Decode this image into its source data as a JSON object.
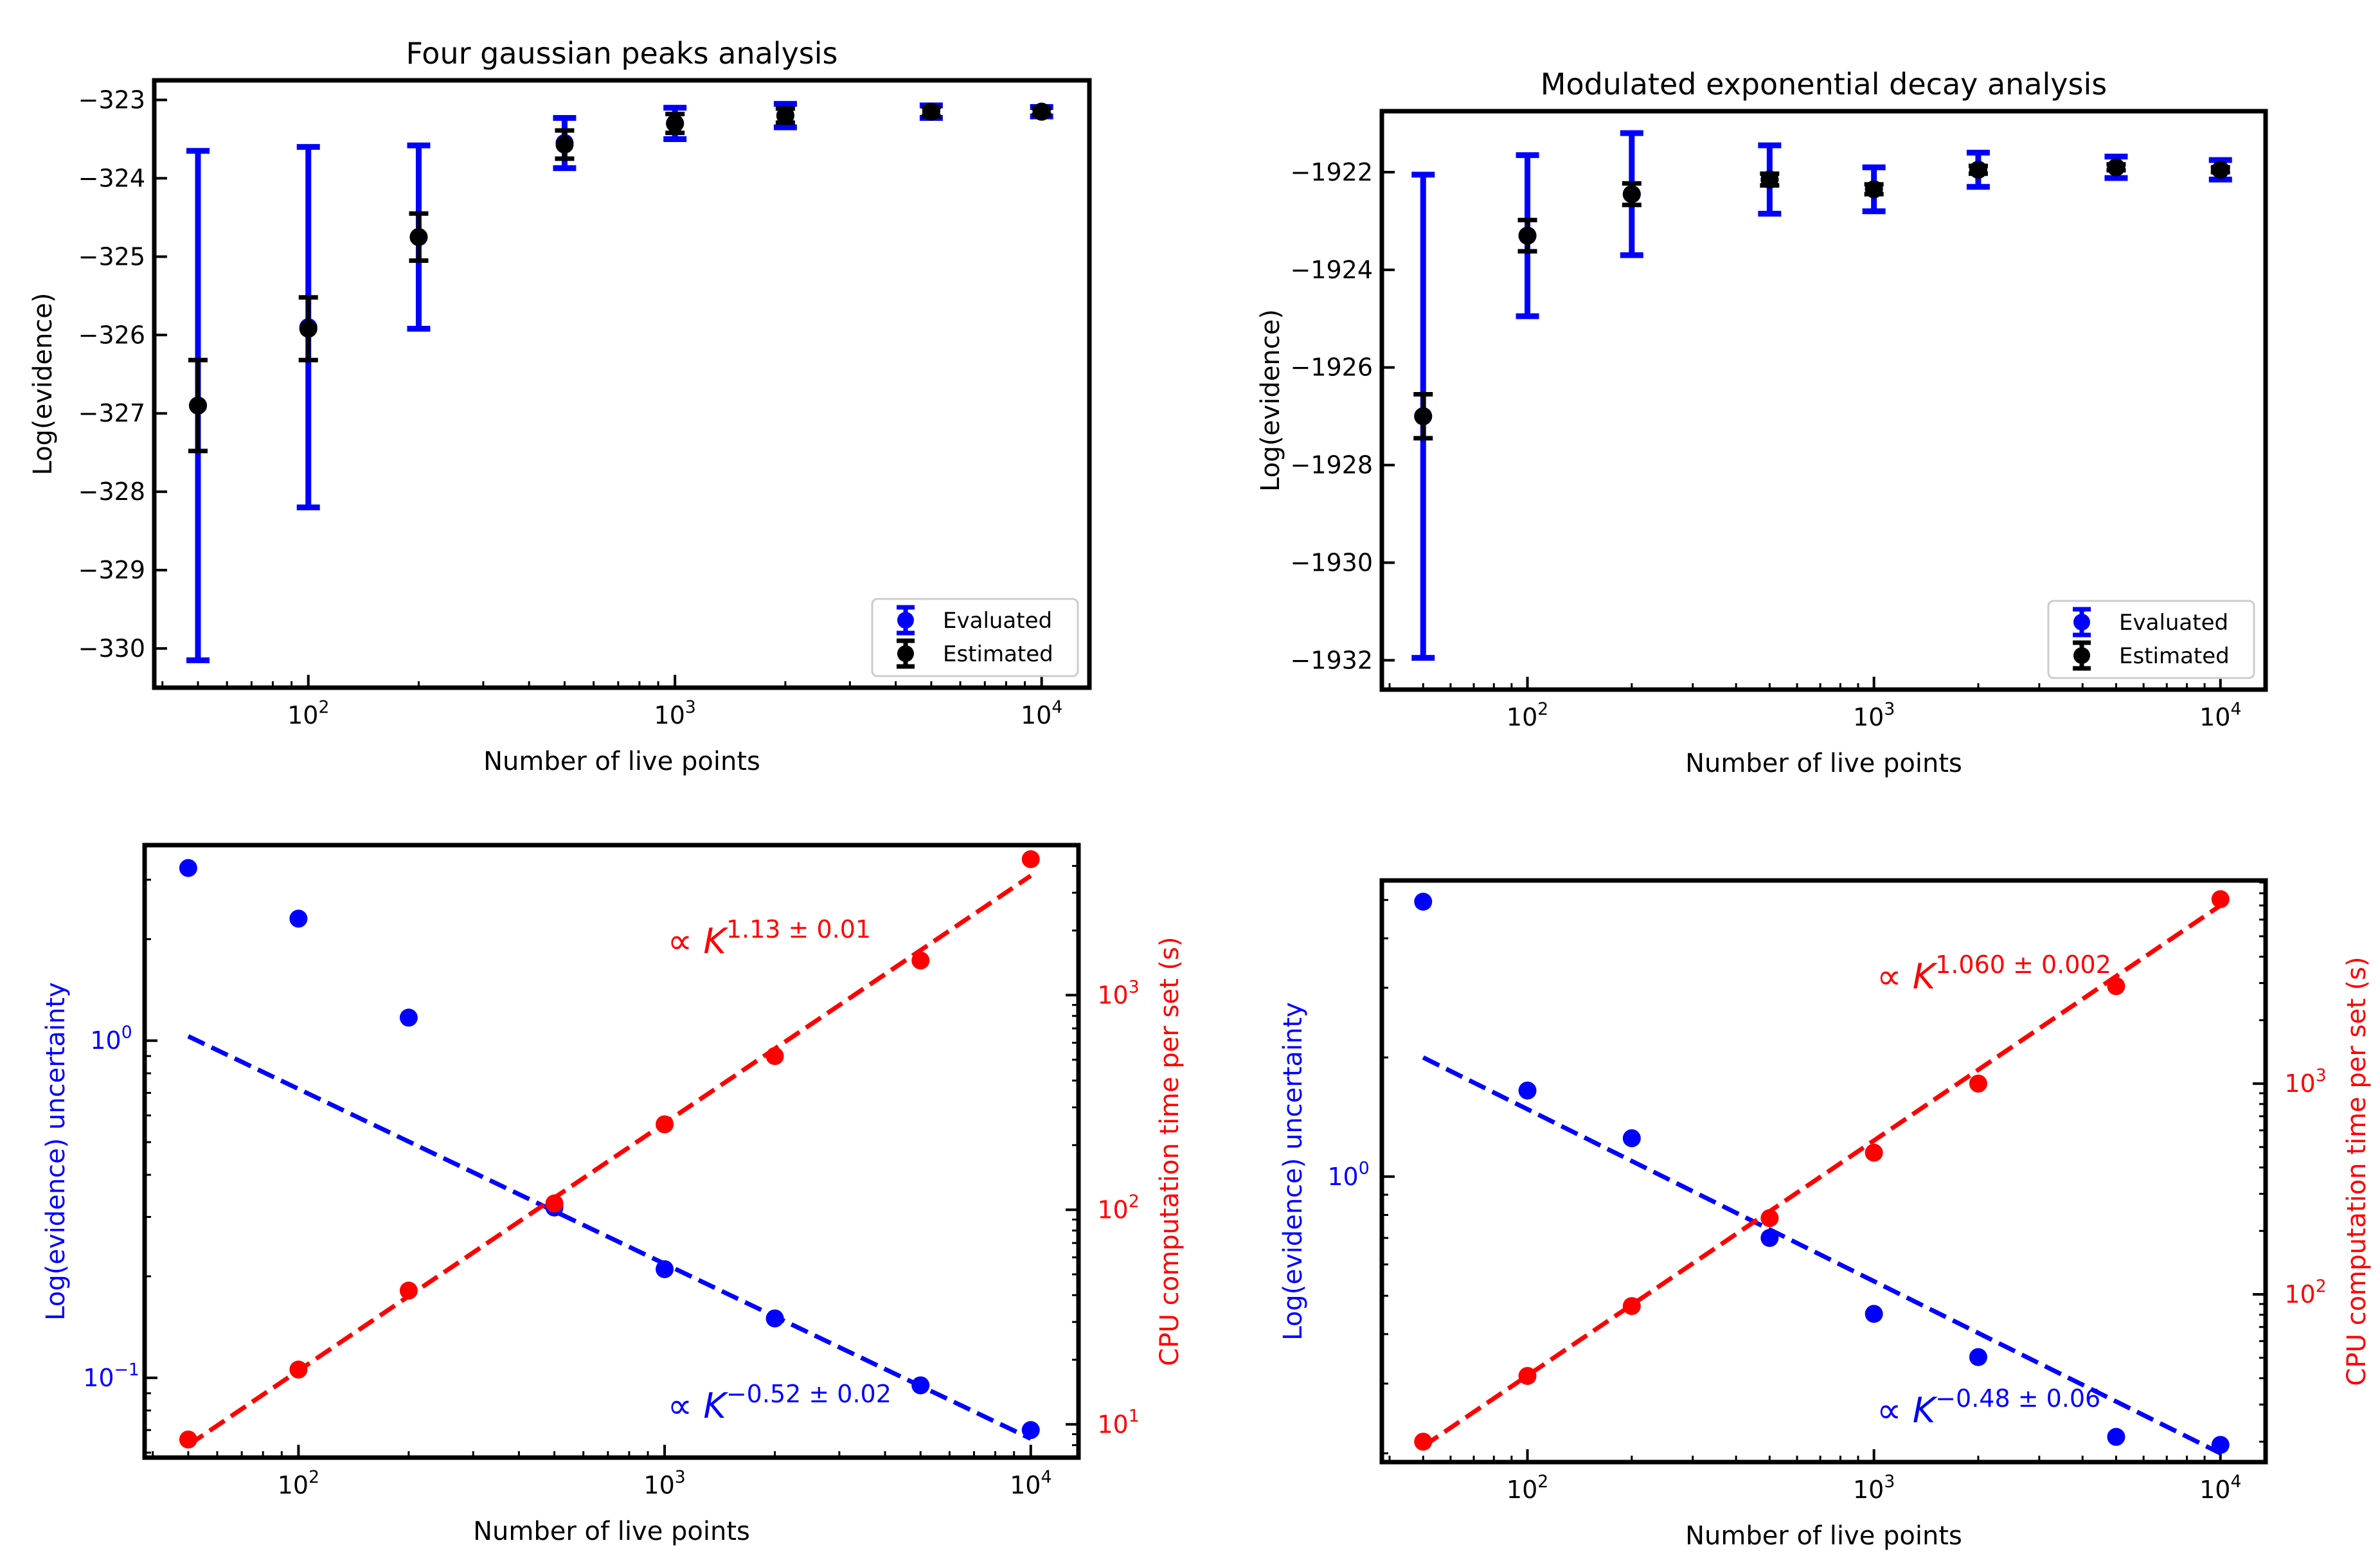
{
  "chart_data": [
    {
      "id": "p1",
      "type": "errorbar",
      "title": "Four gaussian peaks analysis",
      "xlabel": "Number of live points",
      "ylabel": "Log(evidence)",
      "xscale": "log",
      "xlim": [
        38,
        13500
      ],
      "ylim": [
        -330.5,
        -322.75
      ],
      "xticks": [
        {
          "v": 100,
          "b": "10",
          "e": "2"
        },
        {
          "v": 1000,
          "b": "10",
          "e": "3"
        },
        {
          "v": 10000,
          "b": "10",
          "e": "4"
        }
      ],
      "yticks": [
        {
          "v": -330,
          "label": "−330"
        },
        {
          "v": -329,
          "label": "−329"
        },
        {
          "v": -328,
          "label": "−328"
        },
        {
          "v": -327,
          "label": "−327"
        },
        {
          "v": -326,
          "label": "−326"
        },
        {
          "v": -325,
          "label": "−325"
        },
        {
          "v": -324,
          "label": "−324"
        },
        {
          "v": -323,
          "label": "−323"
        }
      ],
      "legend": "lower-right",
      "series": [
        {
          "name": "Evaluated",
          "color": "#0000ff",
          "x": [
            50,
            100,
            200,
            500,
            1000,
            2000,
            5000,
            10000
          ],
          "y": [
            -326.9,
            -325.9,
            -324.75,
            -323.55,
            -323.3,
            -323.2,
            -323.15,
            -323.15
          ],
          "yerr": [
            3.25,
            2.3,
            1.17,
            0.32,
            0.2,
            0.15,
            0.08,
            0.06
          ]
        },
        {
          "name": "Estimated",
          "color": "#000000",
          "x": [
            50,
            100,
            200,
            500,
            1000,
            2000,
            5000,
            10000
          ],
          "y": [
            -326.9,
            -325.92,
            -324.75,
            -323.57,
            -323.3,
            -323.2,
            -323.15,
            -323.15
          ],
          "yerr": [
            0.58,
            0.4,
            0.3,
            0.18,
            0.12,
            0.09,
            0.06,
            0.04
          ]
        }
      ]
    },
    {
      "id": "p2",
      "type": "errorbar",
      "title": "Modulated exponential decay analysis",
      "xlabel": "Number of live points",
      "ylabel": "Log(evidence)",
      "xscale": "log",
      "xlim": [
        38,
        13500
      ],
      "ylim": [
        -1932.6,
        -1920.75
      ],
      "xticks": [
        {
          "v": 100,
          "b": "10",
          "e": "2"
        },
        {
          "v": 1000,
          "b": "10",
          "e": "3"
        },
        {
          "v": 10000,
          "b": "10",
          "e": "4"
        }
      ],
      "yticks": [
        {
          "v": -1932,
          "label": "−1932"
        },
        {
          "v": -1930,
          "label": "−1930"
        },
        {
          "v": -1928,
          "label": "−1928"
        },
        {
          "v": -1926,
          "label": "−1926"
        },
        {
          "v": -1924,
          "label": "−1924"
        },
        {
          "v": -1922,
          "label": "−1922"
        }
      ],
      "legend": "lower-right",
      "series": [
        {
          "name": "Evaluated",
          "color": "#0000ff",
          "x": [
            50,
            100,
            200,
            500,
            1000,
            2000,
            5000,
            10000
          ],
          "y": [
            -1927.0,
            -1923.3,
            -1922.45,
            -1922.15,
            -1922.35,
            -1921.95,
            -1921.9,
            -1921.95
          ],
          "yerr": [
            4.95,
            1.65,
            1.25,
            0.7,
            0.45,
            0.35,
            0.22,
            0.2
          ]
        },
        {
          "name": "Estimated",
          "color": "#000000",
          "x": [
            50,
            100,
            200,
            500,
            1000,
            2000,
            5000,
            10000
          ],
          "y": [
            -1927.0,
            -1923.3,
            -1922.45,
            -1922.15,
            -1922.35,
            -1921.95,
            -1921.9,
            -1921.95
          ],
          "yerr": [
            0.45,
            0.32,
            0.22,
            0.12,
            0.1,
            0.08,
            0.06,
            0.05
          ]
        }
      ]
    },
    {
      "id": "p3",
      "type": "scatter",
      "xlabel": "Number of live points",
      "xscale": "log",
      "xlim": [
        38,
        13500
      ],
      "xticks": [
        {
          "v": 100,
          "b": "10",
          "e": "2"
        },
        {
          "v": 1000,
          "b": "10",
          "e": "3"
        },
        {
          "v": 10000,
          "b": "10",
          "e": "4"
        }
      ],
      "left_axis": {
        "label": "Log(evidence) uncertainty",
        "color": "#0000ff",
        "scale": "log",
        "ylim": [
          0.058,
          3.8
        ],
        "ticks": [
          {
            "v": 1.0,
            "b": "10",
            "e": "0"
          },
          {
            "v": 0.1,
            "b": "10",
            "e": "−1"
          }
        ]
      },
      "right_axis": {
        "label": "CPU computation time per set (s)",
        "color": "#ff0000",
        "scale": "log",
        "ylim": [
          7.0,
          5000
        ],
        "ticks": [
          {
            "v": 10,
            "b": "10",
            "e": "1"
          },
          {
            "v": 100,
            "b": "10",
            "e": "2"
          },
          {
            "v": 1000,
            "b": "10",
            "e": "3"
          }
        ]
      },
      "series": [
        {
          "name": "Log(evidence) uncertainty",
          "axis": "left",
          "color": "#0000ff",
          "x": [
            50,
            100,
            200,
            500,
            1000,
            2000,
            5000,
            10000
          ],
          "y": [
            3.25,
            2.3,
            1.17,
            0.32,
            0.21,
            0.15,
            0.095,
            0.07
          ]
        },
        {
          "name": "CPU computation time per set",
          "axis": "right",
          "color": "#ff0000",
          "x": [
            50,
            100,
            200,
            500,
            1000,
            2000,
            5000,
            10000
          ],
          "y": [
            8.5,
            18,
            42,
            107,
            250,
            520,
            1450,
            4300
          ]
        }
      ],
      "fits": [
        {
          "axis": "left",
          "color": "#0000ff",
          "x": [
            50,
            10000
          ],
          "y": [
            1.03,
            0.066
          ],
          "label_prefix": "∝ ",
          "label_base": "K",
          "label_exp": "−0.52 ± 0.02",
          "position": "lower-right"
        },
        {
          "axis": "right",
          "color": "#ff0000",
          "x": [
            50,
            10000
          ],
          "y": [
            8.0,
            3600
          ],
          "label_prefix": "∝ ",
          "label_base": "K",
          "label_exp": "1.13 ± 0.01",
          "position": "upper-right"
        }
      ]
    },
    {
      "id": "p4",
      "type": "scatter",
      "xlabel": "Number of live points",
      "xscale": "log",
      "xlim": [
        38,
        13500
      ],
      "xticks": [
        {
          "v": 100,
          "b": "10",
          "e": "2"
        },
        {
          "v": 1000,
          "b": "10",
          "e": "3"
        },
        {
          "v": 10000,
          "b": "10",
          "e": "4"
        }
      ],
      "left_axis": {
        "label": "Log(evidence) uncertainty",
        "color": "#0000ff",
        "scale": "log",
        "ylim": [
          0.19,
          5.6
        ],
        "ticks": [
          {
            "v": 1.0,
            "b": "10",
            "e": "0"
          }
        ]
      },
      "right_axis": {
        "label": "CPU computation time per set (s)",
        "color": "#ff0000",
        "scale": "log",
        "ylim": [
          16,
          9200
        ],
        "ticks": [
          {
            "v": 100,
            "b": "10",
            "e": "2"
          },
          {
            "v": 1000,
            "b": "10",
            "e": "3"
          }
        ]
      },
      "series": [
        {
          "name": "Log(evidence) uncertainty",
          "axis": "left",
          "color": "#0000ff",
          "x": [
            50,
            100,
            200,
            500,
            1000,
            2000,
            5000,
            10000
          ],
          "y": [
            4.95,
            1.65,
            1.25,
            0.7,
            0.45,
            0.35,
            0.22,
            0.21
          ]
        },
        {
          "name": "CPU computation time per set",
          "axis": "right",
          "color": "#ff0000",
          "x": [
            50,
            100,
            200,
            500,
            1000,
            2000,
            5000,
            10000
          ],
          "y": [
            20,
            41,
            88,
            230,
            470,
            1000,
            2900,
            7500
          ]
        }
      ],
      "fits": [
        {
          "axis": "left",
          "color": "#0000ff",
          "x": [
            50,
            10000
          ],
          "y": [
            2.0,
            0.2
          ],
          "label_prefix": "∝ ",
          "label_base": "K",
          "label_exp": "−0.48 ± 0.06",
          "position": "lower-right"
        },
        {
          "axis": "right",
          "color": "#ff0000",
          "x": [
            50,
            10000
          ],
          "y": [
            19,
            7000
          ],
          "label_prefix": "∝ ",
          "label_base": "K",
          "label_exp": "1.060 ± 0.002",
          "position": "upper-right"
        }
      ]
    }
  ]
}
